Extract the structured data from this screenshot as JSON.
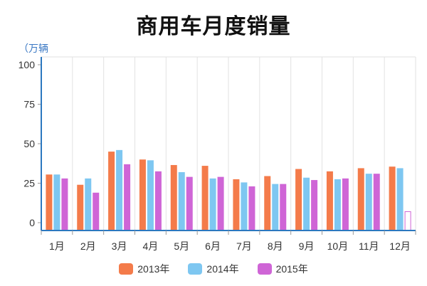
{
  "chart_data": {
    "type": "bar",
    "title": "商用车月度销量",
    "unit_label": "（万辆",
    "categories": [
      "1月",
      "2月",
      "3月",
      "4月",
      "5月",
      "6月",
      "7月",
      "8月",
      "9月",
      "10月",
      "11月",
      "12月"
    ],
    "y_ticks": [
      "0",
      "25",
      "50",
      "75",
      "100"
    ],
    "ylim": [
      0,
      100
    ],
    "grid": true,
    "legend_position": "bottom",
    "series": [
      {
        "name": "2013年",
        "color": "#f47b4a",
        "values": [
          30.5,
          24,
          45,
          40,
          36.5,
          36,
          27.5,
          29.5,
          34,
          32.5,
          34.5,
          35.5
        ]
      },
      {
        "name": "2014年",
        "color": "#7ec7f1",
        "values": [
          30.5,
          28,
          46,
          39.5,
          32,
          28,
          25.5,
          24.5,
          28.5,
          27.5,
          31,
          34.5
        ]
      },
      {
        "name": "2015年",
        "color": "#cf65d6",
        "values": [
          28,
          19,
          37,
          32.5,
          29,
          29,
          23,
          24.5,
          27,
          28,
          31,
          7
        ]
      }
    ],
    "outlined_bars": [
      {
        "series": 2,
        "index": 11
      }
    ]
  }
}
